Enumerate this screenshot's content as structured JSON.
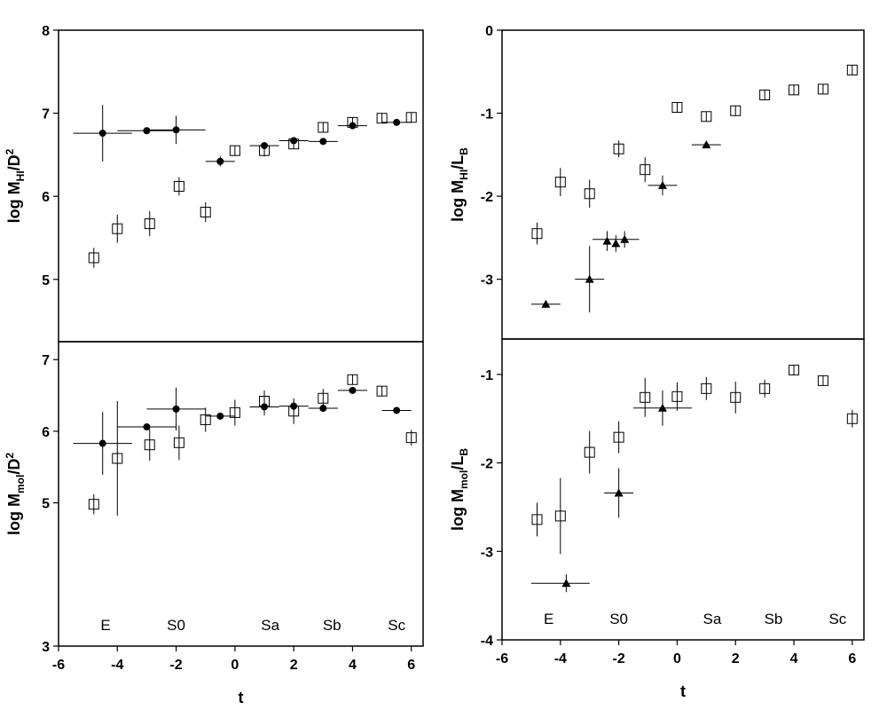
{
  "x_axis": {
    "label": "t",
    "ticks": [
      -6,
      -4,
      -2,
      0,
      2,
      4,
      6
    ],
    "range": [
      -6,
      6.4
    ]
  },
  "morph_types": [
    {
      "label": "E",
      "t": -4.4
    },
    {
      "label": "S0",
      "t": -2.0
    },
    {
      "label": "Sa",
      "t": 1.2
    },
    {
      "label": "Sb",
      "t": 3.3
    },
    {
      "label": "Sc",
      "t": 5.5
    }
  ],
  "chart_data": [
    {
      "type": "scatter",
      "panel": "top-left",
      "ylabel_main": "log M",
      "ylabel_sub": "HI",
      "ylabel_tail": "/D",
      "ylabel_sup": "2",
      "ylim": [
        4.25,
        8
      ],
      "yticks": [
        5,
        6,
        7,
        8
      ],
      "series": [
        {
          "marker": "open-square",
          "points": [
            {
              "x": -4.8,
              "y": 5.26,
              "yerr": 0.12
            },
            {
              "x": -4.0,
              "y": 5.61,
              "yerr": 0.17
            },
            {
              "x": -2.9,
              "y": 5.67,
              "yerr": 0.15
            },
            {
              "x": -1.9,
              "y": 6.12,
              "yerr": 0.11
            },
            {
              "x": -1.0,
              "y": 5.81,
              "yerr": 0.12
            },
            {
              "x": 0.0,
              "y": 6.55,
              "yerr": 0.05
            },
            {
              "x": 1.0,
              "y": 6.55,
              "yerr": 0.07
            },
            {
              "x": 2.0,
              "y": 6.63,
              "yerr": 0.06
            },
            {
              "x": 3.0,
              "y": 6.83,
              "yerr": 0.04
            },
            {
              "x": 4.0,
              "y": 6.89,
              "yerr": 0.03
            },
            {
              "x": 5.0,
              "y": 6.94,
              "yerr": 0.03
            },
            {
              "x": 6.0,
              "y": 6.95,
              "yerr": 0.03
            }
          ]
        },
        {
          "marker": "filled-circle",
          "points": [
            {
              "x": -4.5,
              "y": 6.76,
              "xmin": -5.5,
              "xmax": -3.5,
              "yerr": 0.34
            },
            {
              "x": -3.0,
              "y": 6.79,
              "xmin": -4.0,
              "xmax": -2.0,
              "yerr": 0.0
            },
            {
              "x": -2.0,
              "y": 6.8,
              "xmin": -3.0,
              "xmax": -1.0,
              "yerr": 0.17
            },
            {
              "x": -0.5,
              "y": 6.42,
              "xmin": -1.0,
              "xmax": 0.0,
              "yerr": 0.06
            },
            {
              "x": 1.0,
              "y": 6.61,
              "xmin": 0.5,
              "xmax": 1.5,
              "yerr": 0.04
            },
            {
              "x": 2.0,
              "y": 6.67,
              "xmin": 1.5,
              "xmax": 2.5,
              "yerr": 0.04
            },
            {
              "x": 3.0,
              "y": 6.66,
              "xmin": 2.5,
              "xmax": 3.5,
              "yerr": 0.0
            },
            {
              "x": 4.0,
              "y": 6.85,
              "xmin": 3.5,
              "xmax": 4.5,
              "yerr": 0.0
            },
            {
              "x": 5.5,
              "y": 6.89,
              "xmin": 5.0,
              "xmax": 6.0,
              "yerr": 0.0
            }
          ]
        }
      ]
    },
    {
      "type": "scatter",
      "panel": "bottom-left",
      "ylabel_main": "log M",
      "ylabel_sub": "mol",
      "ylabel_tail": "/D",
      "ylabel_sup": "2",
      "ylim": [
        3,
        7.25
      ],
      "yticks": [
        3,
        5,
        6,
        7
      ],
      "series": [
        {
          "marker": "open-square",
          "points": [
            {
              "x": -4.8,
              "y": 4.98,
              "yerr": 0.14
            },
            {
              "x": -4.0,
              "y": 5.62,
              "yerr": 0.8
            },
            {
              "x": -2.9,
              "y": 5.81,
              "yerr": 0.22
            },
            {
              "x": -1.9,
              "y": 5.84,
              "yerr": 0.24
            },
            {
              "x": -1.0,
              "y": 6.16,
              "yerr": 0.17
            },
            {
              "x": 0.0,
              "y": 6.26,
              "yerr": 0.18
            },
            {
              "x": 1.0,
              "y": 6.42,
              "yerr": 0.15
            },
            {
              "x": 2.0,
              "y": 6.28,
              "yerr": 0.18
            },
            {
              "x": 3.0,
              "y": 6.46,
              "yerr": 0.13
            },
            {
              "x": 4.0,
              "y": 6.72,
              "yerr": 0.07
            },
            {
              "x": 5.0,
              "y": 6.56,
              "yerr": 0.07
            },
            {
              "x": 6.0,
              "y": 5.91,
              "yerr": 0.11
            }
          ]
        },
        {
          "marker": "filled-circle",
          "points": [
            {
              "x": -4.5,
              "y": 5.83,
              "xmin": -5.5,
              "xmax": -3.5,
              "yerr": 0.44
            },
            {
              "x": -3.0,
              "y": 6.06,
              "xmin": -4.0,
              "xmax": -2.0,
              "yerr": 0.0
            },
            {
              "x": -2.0,
              "y": 6.31,
              "xmin": -3.0,
              "xmax": -1.0,
              "yerr": 0.3
            },
            {
              "x": -0.5,
              "y": 6.21,
              "xmin": -1.0,
              "xmax": 0.0,
              "yerr": 0.0
            },
            {
              "x": 1.0,
              "y": 6.34,
              "xmin": 0.5,
              "xmax": 1.5,
              "yerr": 0.12
            },
            {
              "x": 2.0,
              "y": 6.35,
              "xmin": 1.5,
              "xmax": 2.5,
              "yerr": 0.06
            },
            {
              "x": 3.0,
              "y": 6.32,
              "xmin": 2.5,
              "xmax": 3.5,
              "yerr": 0.0
            },
            {
              "x": 4.0,
              "y": 6.57,
              "xmin": 3.5,
              "xmax": 4.5,
              "yerr": 0.0
            },
            {
              "x": 5.5,
              "y": 6.29,
              "xmin": 5.0,
              "xmax": 6.0,
              "yerr": 0.0
            }
          ]
        }
      ]
    },
    {
      "type": "scatter",
      "panel": "top-right",
      "ylabel_main": "log M",
      "ylabel_sub": "HI",
      "ylabel_tail": "/L",
      "ylabel_sub2": "B",
      "ylim": [
        -3.72,
        0
      ],
      "yticks": [
        -3,
        -2,
        -1,
        0
      ],
      "series": [
        {
          "marker": "open-square",
          "points": [
            {
              "x": -4.8,
              "y": -2.45,
              "yerr": 0.13
            },
            {
              "x": -4.0,
              "y": -1.83,
              "yerr": 0.17
            },
            {
              "x": -3.0,
              "y": -1.97,
              "yerr": 0.17
            },
            {
              "x": -2.0,
              "y": -1.43,
              "yerr": 0.1
            },
            {
              "x": -1.1,
              "y": -1.68,
              "yerr": 0.15
            },
            {
              "x": 0.0,
              "y": -0.93,
              "yerr": 0.05
            },
            {
              "x": 1.0,
              "y": -1.04,
              "yerr": 0.05
            },
            {
              "x": 2.0,
              "y": -0.97,
              "yerr": 0.05
            },
            {
              "x": 3.0,
              "y": -0.78,
              "yerr": 0.04
            },
            {
              "x": 4.0,
              "y": -0.72,
              "yerr": 0.04
            },
            {
              "x": 5.0,
              "y": -0.71,
              "yerr": 0.04
            },
            {
              "x": 6.0,
              "y": -0.48,
              "yerr": 0.04
            }
          ]
        },
        {
          "marker": "filled-triangle",
          "points": [
            {
              "x": -4.5,
              "y": -3.3,
              "xmin": -5.0,
              "xmax": -4.0,
              "yerr": 0.0
            },
            {
              "x": -3.0,
              "y": -3.0,
              "xmin": -3.5,
              "xmax": -2.5,
              "yerr": 0.4
            },
            {
              "x": -2.4,
              "y": -2.54,
              "yerr": 0.12
            },
            {
              "x": -2.1,
              "y": -2.57,
              "yerr": 0.1
            },
            {
              "x": -1.8,
              "y": -2.52,
              "xmin": -2.9,
              "xmax": -1.3,
              "yerr": 0.1
            },
            {
              "x": -0.5,
              "y": -1.87,
              "xmin": -1.0,
              "xmax": 0.0,
              "yerr": 0.12
            },
            {
              "x": 1.0,
              "y": -1.38,
              "xmin": 0.5,
              "xmax": 1.5,
              "yerr": 0.0
            }
          ]
        }
      ]
    },
    {
      "type": "scatter",
      "panel": "bottom-right",
      "ylabel_main": "log M",
      "ylabel_sub": "mol",
      "ylabel_tail": "/L",
      "ylabel_sub2": "B",
      "ylim": [
        -4,
        -0.6
      ],
      "yticks": [
        -4,
        -3,
        -2,
        -1
      ],
      "series": [
        {
          "marker": "open-square",
          "points": [
            {
              "x": -4.8,
              "y": -2.64,
              "yerr": 0.19
            },
            {
              "x": -4.0,
              "y": -2.6,
              "yerr": 0.43
            },
            {
              "x": -3.0,
              "y": -1.88,
              "yerr": 0.24
            },
            {
              "x": -2.0,
              "y": -1.71,
              "yerr": 0.18
            },
            {
              "x": -1.1,
              "y": -1.26,
              "yerr": 0.22
            },
            {
              "x": 0.0,
              "y": -1.25,
              "yerr": 0.16
            },
            {
              "x": 1.0,
              "y": -1.16,
              "yerr": 0.13
            },
            {
              "x": 2.0,
              "y": -1.26,
              "yerr": 0.18
            },
            {
              "x": 3.0,
              "y": -1.16,
              "yerr": 0.1
            },
            {
              "x": 4.0,
              "y": -0.95,
              "yerr": 0.05
            },
            {
              "x": 5.0,
              "y": -1.07,
              "yerr": 0.05
            },
            {
              "x": 6.0,
              "y": -1.5,
              "yerr": 0.1
            }
          ]
        },
        {
          "marker": "filled-triangle",
          "points": [
            {
              "x": -3.8,
              "y": -3.36,
              "xmin": -5.0,
              "xmax": -3.0,
              "yerr": 0.1
            },
            {
              "x": -2.0,
              "y": -2.34,
              "xmin": -2.5,
              "xmax": -1.5,
              "yerr": 0.28
            },
            {
              "x": -0.5,
              "y": -1.38,
              "xmin": -1.5,
              "xmax": 0.5,
              "yerr": 0.2
            }
          ]
        }
      ]
    }
  ]
}
